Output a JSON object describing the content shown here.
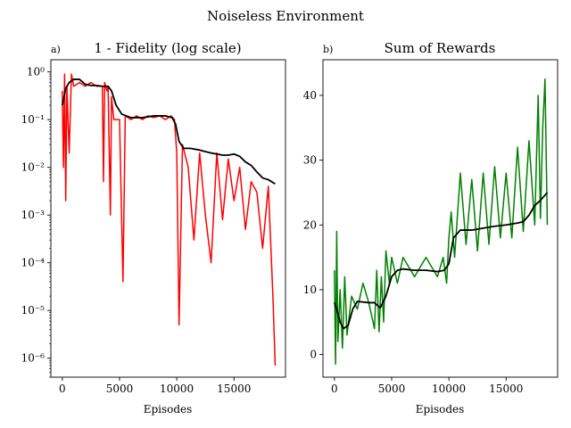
{
  "figure": {
    "title": "Noiseless Environment"
  },
  "chart_data": [
    {
      "type": "line",
      "panel_label": "a)",
      "title": "1 - Fidelity (log scale)",
      "xlabel": "Episodes",
      "ylabel": "",
      "yscale": "log",
      "xlim": [
        -1000,
        19500
      ],
      "ylim": [
        4e-07,
        1.8
      ],
      "xticks": [
        0,
        5000,
        10000,
        15000
      ],
      "xtick_labels": [
        "0",
        "5000",
        "10000",
        "15000"
      ],
      "yticks": [
        1e-06,
        1e-05,
        0.0001,
        0.001,
        0.01,
        0.1,
        1
      ],
      "ytick_labels": [
        "10⁻⁶",
        "10⁻⁵",
        "10⁻⁴",
        "10⁻³",
        "10⁻²",
        "10⁻¹",
        "10⁰"
      ],
      "grid": false,
      "series": [
        {
          "color": "#ff0000",
          "note_points": "raw per-episode values (high variance)",
          "x": [
            0,
            100,
            200,
            300,
            400,
            600,
            800,
            1000,
            1500,
            2000,
            2500,
            3000,
            3500,
            3600,
            3700,
            3900,
            4000,
            4200,
            4300,
            4500,
            5000,
            5300,
            5500,
            6000,
            6500,
            7000,
            7500,
            8000,
            8500,
            9000,
            9500,
            9800,
            10000,
            10200,
            10500,
            11000,
            11500,
            12000,
            12500,
            13000,
            13500,
            14000,
            14500,
            15000,
            15500,
            16000,
            16500,
            17000,
            17500,
            18000,
            18400,
            18600
          ],
          "y": [
            0.4,
            0.01,
            0.9,
            0.002,
            0.5,
            0.02,
            0.9,
            0.5,
            0.6,
            0.5,
            0.6,
            0.5,
            0.5,
            0.005,
            0.6,
            0.4,
            0.5,
            0.001,
            0.3,
            0.1,
            0.1,
            4e-05,
            0.12,
            0.1,
            0.12,
            0.1,
            0.12,
            0.11,
            0.12,
            0.1,
            0.12,
            0.1,
            0.02,
            5e-06,
            0.03,
            0.01,
            0.0003,
            0.02,
            0.001,
            0.0001,
            0.02,
            0.0008,
            0.015,
            0.002,
            0.01,
            0.0005,
            0.005,
            0.003,
            0.0002,
            0.004,
            2e-05,
            7e-07
          ]
        },
        {
          "color": "#000000",
          "note_points": "smoothed curve",
          "x": [
            0,
            300,
            600,
            1000,
            1500,
            2000,
            2500,
            3000,
            3500,
            4000,
            4300,
            4700,
            5200,
            6000,
            7000,
            8000,
            9000,
            9600,
            9900,
            10200,
            10600,
            11200,
            12000,
            13000,
            14000,
            14500,
            15000,
            15500,
            16000,
            16500,
            17000,
            17500,
            18000,
            18600
          ],
          "y": [
            0.2,
            0.45,
            0.6,
            0.7,
            0.7,
            0.55,
            0.52,
            0.52,
            0.5,
            0.5,
            0.4,
            0.2,
            0.13,
            0.11,
            0.11,
            0.12,
            0.12,
            0.11,
            0.08,
            0.035,
            0.025,
            0.025,
            0.023,
            0.02,
            0.018,
            0.018,
            0.019,
            0.017,
            0.013,
            0.011,
            0.008,
            0.006,
            0.0055,
            0.0045
          ]
        }
      ]
    },
    {
      "type": "line",
      "panel_label": "b)",
      "title": "Sum of Rewards",
      "xlabel": "Episodes",
      "ylabel": "",
      "yscale": "linear",
      "xlim": [
        -1000,
        19500
      ],
      "ylim": [
        -3.5,
        45.5
      ],
      "xticks": [
        0,
        5000,
        10000,
        15000
      ],
      "xtick_labels": [
        "0",
        "5000",
        "10000",
        "15000"
      ],
      "yticks": [
        0,
        10,
        20,
        30,
        40
      ],
      "ytick_labels": [
        "0",
        "10",
        "20",
        "30",
        "40"
      ],
      "grid": false,
      "series": [
        {
          "color": "#008000",
          "note_points": "raw per-episode values (high variance)",
          "x": [
            0,
            100,
            200,
            300,
            500,
            700,
            900,
            1100,
            1500,
            2000,
            2500,
            3000,
            3500,
            3700,
            3900,
            4100,
            4300,
            4500,
            4800,
            5000,
            5500,
            6000,
            7000,
            8000,
            9000,
            9500,
            9800,
            10000,
            10200,
            10500,
            11000,
            11500,
            12000,
            12500,
            13000,
            13500,
            14000,
            14500,
            15000,
            15500,
            16000,
            16500,
            17000,
            17500,
            17800,
            18000,
            18200,
            18400,
            18600
          ],
          "y": [
            13,
            -1.5,
            19,
            2,
            10,
            1,
            12,
            3,
            9,
            7,
            11,
            8,
            4,
            13,
            3.5,
            12,
            5,
            16,
            11,
            15,
            11,
            15,
            12,
            15,
            12,
            15,
            11,
            18,
            22,
            15,
            28,
            17,
            27,
            16,
            28,
            17,
            29,
            18,
            28,
            18,
            32,
            19,
            33,
            20,
            40,
            21,
            35,
            42.5,
            20
          ]
        },
        {
          "color": "#000000",
          "note_points": "smoothed curve",
          "x": [
            0,
            200,
            500,
            800,
            1200,
            1600,
            2000,
            3000,
            3500,
            4000,
            4500,
            5000,
            5500,
            6000,
            7000,
            8000,
            9000,
            9600,
            10000,
            10400,
            11000,
            12000,
            13000,
            14000,
            15000,
            16000,
            16500,
            17000,
            17500,
            18000,
            18600
          ],
          "y": [
            8,
            7,
            5,
            4,
            4.5,
            7,
            8.2,
            8,
            8,
            7.2,
            9,
            12,
            13,
            13.2,
            13,
            13,
            12.8,
            13,
            14,
            18,
            19.2,
            19.2,
            19.5,
            19.8,
            20,
            20.3,
            20.5,
            21.5,
            23,
            23.8,
            25
          ]
        }
      ]
    }
  ]
}
